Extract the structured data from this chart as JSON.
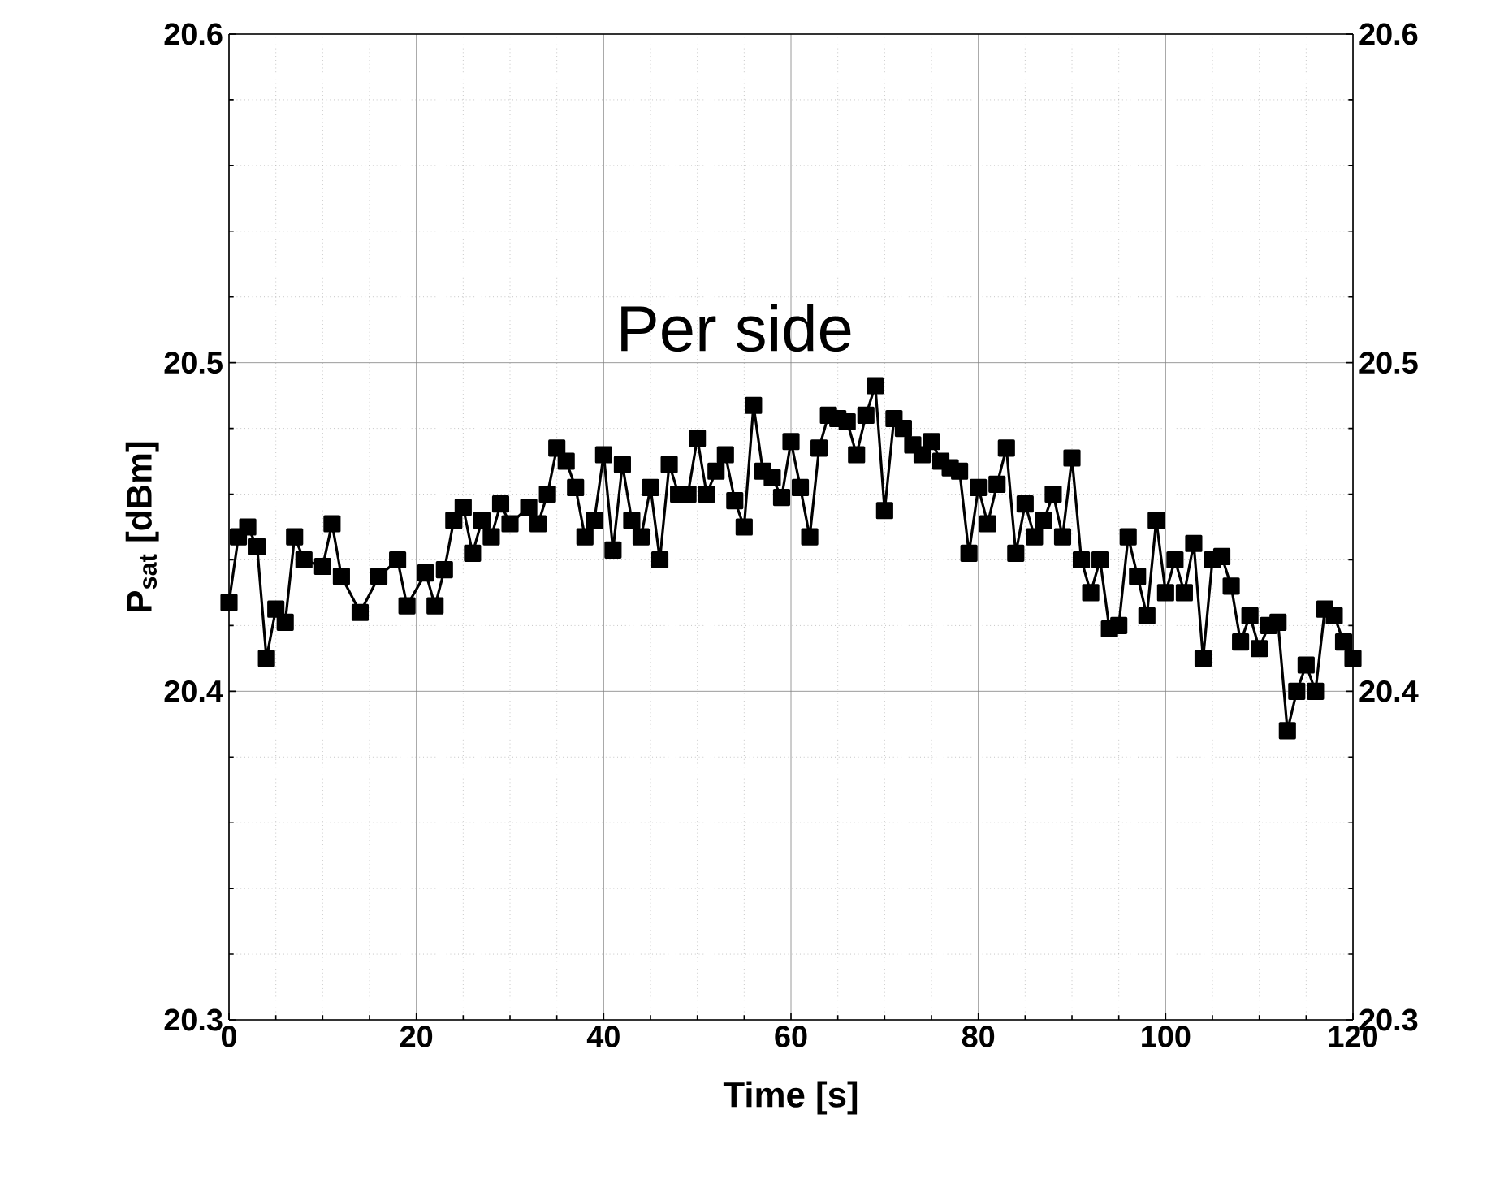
{
  "chart_data": {
    "type": "line",
    "xlabel": "Time [s]",
    "ylabel": "P$_{sat}$ [dBm]",
    "annotations": [
      "Per side"
    ],
    "xlim": [
      0,
      120
    ],
    "xticks": [
      0,
      20,
      40,
      60,
      80,
      100,
      120
    ],
    "ylim": [
      20.3,
      20.6
    ],
    "yticks": [
      20.3,
      20.4,
      20.5,
      20.6
    ],
    "y2lim": [
      20.3,
      20.6
    ],
    "y2ticks": [
      20.3,
      20.4,
      20.5,
      20.6
    ],
    "grid": true,
    "marker": "square",
    "line_style": "solid",
    "x": [
      0,
      1,
      2,
      3,
      4,
      5,
      6,
      7,
      8,
      10,
      11,
      12,
      14,
      16,
      18,
      19,
      21,
      22,
      23,
      24,
      25,
      26,
      27,
      28,
      29,
      30,
      32,
      33,
      34,
      35,
      36,
      37,
      38,
      39,
      40,
      41,
      42,
      43,
      44,
      45,
      46,
      47,
      48,
      49,
      50,
      51,
      52,
      53,
      54,
      55,
      56,
      57,
      58,
      59,
      60,
      61,
      62,
      63,
      64,
      65,
      66,
      67,
      68,
      69,
      70,
      71,
      72,
      73,
      74,
      75,
      76,
      77,
      78,
      79,
      80,
      81,
      82,
      83,
      84,
      85,
      86,
      87,
      88,
      89,
      90,
      91,
      92,
      93,
      94,
      95,
      96,
      97,
      98,
      99,
      100,
      101,
      102,
      103,
      104,
      105,
      106,
      107,
      108,
      109,
      110,
      111,
      112,
      113,
      114,
      115,
      116,
      117,
      118,
      119,
      120
    ],
    "series": [
      {
        "color": "#000000",
        "values": [
          20.427,
          20.447,
          20.45,
          20.444,
          20.41,
          20.425,
          20.421,
          20.447,
          20.44,
          20.438,
          20.451,
          20.435,
          20.424,
          20.435,
          20.44,
          20.426,
          20.436,
          20.426,
          20.437,
          20.452,
          20.456,
          20.442,
          20.452,
          20.447,
          20.457,
          20.451,
          20.456,
          20.451,
          20.46,
          20.474,
          20.47,
          20.462,
          20.447,
          20.452,
          20.472,
          20.443,
          20.469,
          20.452,
          20.447,
          20.462,
          20.44,
          20.469,
          20.46,
          20.46,
          20.477,
          20.46,
          20.467,
          20.472,
          20.458,
          20.45,
          20.487,
          20.467,
          20.465,
          20.459,
          20.476,
          20.462,
          20.447,
          20.474,
          20.484,
          20.483,
          20.482,
          20.472,
          20.484,
          20.493,
          20.455,
          20.483,
          20.48,
          20.475,
          20.472,
          20.476,
          20.47,
          20.468,
          20.467,
          20.442,
          20.462,
          20.451,
          20.463,
          20.474,
          20.442,
          20.457,
          20.447,
          20.452,
          20.46,
          20.447,
          20.471,
          20.44,
          20.43,
          20.44,
          20.419,
          20.42,
          20.447,
          20.435,
          20.423,
          20.452,
          20.43,
          20.44,
          20.43,
          20.445,
          20.41,
          20.44,
          20.441,
          20.432,
          20.415,
          20.423,
          20.413,
          20.42,
          20.421,
          20.388,
          20.4,
          20.408,
          20.4,
          20.425,
          20.423,
          20.415,
          20.41
        ]
      }
    ]
  }
}
